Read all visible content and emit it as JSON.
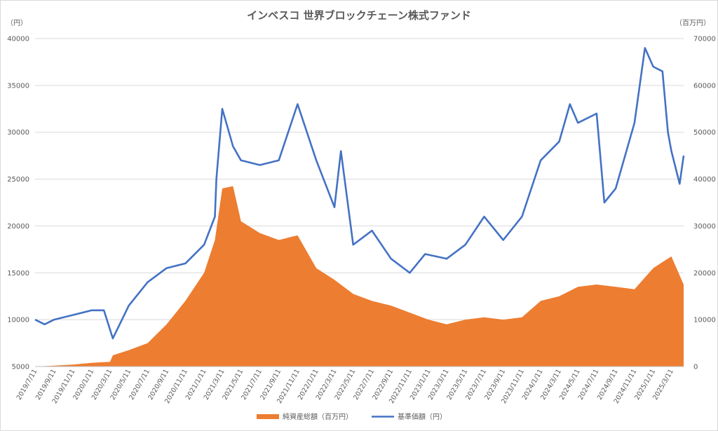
{
  "chart_data": {
    "type": "area+line",
    "title": "インベスコ 世界ブロックチェーン株式ファンド",
    "y_left_unit": "（円）",
    "y_right_unit": "（百万円）",
    "y_left_ticks": [
      "5000",
      "10000",
      "15000",
      "20000",
      "25000",
      "30000",
      "35000",
      "40000"
    ],
    "y_right_ticks": [
      "0",
      "10000",
      "20000",
      "30000",
      "40000",
      "50000",
      "60000",
      "70000"
    ],
    "ylim_left": [
      5000,
      40000
    ],
    "ylim_right": [
      0,
      70000
    ],
    "x_tick_labels": [
      "2019/7/11",
      "2019/9/11",
      "2019/11/11",
      "2020/1/11",
      "2020/3/11",
      "2020/5/11",
      "2020/7/11",
      "2020/9/11",
      "2020/11/11",
      "2021/1/11",
      "2021/3/11",
      "2021/5/11",
      "2021/7/11",
      "2021/9/11",
      "2021/11/11",
      "2022/1/11",
      "2022/3/11",
      "2022/5/11",
      "2022/7/11",
      "2022/9/11",
      "2022/11/11",
      "2023/1/11",
      "2023/3/11",
      "2023/5/11",
      "2023/7/11",
      "2023/9/11",
      "2023/11/11",
      "2024/1/11",
      "2024/3/11",
      "2024/5/11",
      "2024/7/11",
      "2024/9/11",
      "2024/11/11",
      "2025/1/11",
      "2025/3/11"
    ],
    "grid": true,
    "legend_position": "bottom",
    "colors": {
      "nav": "#4472C4",
      "aum": "#ED7D31"
    },
    "series": [
      {
        "name": "純資産総額（百万円）",
        "kind": "area",
        "axis": "right",
        "x": [
          "2019/7/11",
          "2019/9/11",
          "2019/11/11",
          "2020/1/11",
          "2020/3/11",
          "2020/3/20",
          "2020/5/11",
          "2020/7/11",
          "2020/9/11",
          "2020/11/11",
          "2021/1/11",
          "2021/2/15",
          "2021/3/11",
          "2021/4/15",
          "2021/5/11",
          "2021/7/11",
          "2021/9/11",
          "2021/11/11",
          "2022/1/11",
          "2022/3/11",
          "2022/5/11",
          "2022/7/11",
          "2022/9/11",
          "2022/11/11",
          "2023/1/11",
          "2023/3/11",
          "2023/5/11",
          "2023/7/11",
          "2023/9/11",
          "2023/11/11",
          "2024/1/11",
          "2024/3/11",
          "2024/5/11",
          "2024/7/11",
          "2024/9/11",
          "2024/11/11",
          "2025/1/11",
          "2025/2/15",
          "2025/3/11",
          "2025/4/20"
        ],
        "values": [
          0,
          200,
          400,
          800,
          1000,
          2400,
          3500,
          5000,
          9000,
          14000,
          20000,
          27000,
          38000,
          38500,
          31000,
          28500,
          27000,
          28000,
          21000,
          18500,
          15500,
          14000,
          13000,
          11500,
          10000,
          9000,
          10000,
          10500,
          10000,
          10500,
          14000,
          15000,
          17000,
          17500,
          17000,
          16500,
          21000,
          22500,
          23500,
          17500
        ]
      },
      {
        "name": "基準価額（円）",
        "kind": "line",
        "axis": "left",
        "x": [
          "2019/7/11",
          "2019/8/11",
          "2019/9/11",
          "2019/11/11",
          "2020/1/11",
          "2020/2/20",
          "2020/3/20",
          "2020/5/11",
          "2020/7/11",
          "2020/9/11",
          "2020/11/11",
          "2021/1/11",
          "2021/2/15",
          "2021/2/20",
          "2021/3/11",
          "2021/4/15",
          "2021/5/11",
          "2021/7/11",
          "2021/9/11",
          "2021/11/11",
          "2022/1/11",
          "2022/3/11",
          "2022/4/1",
          "2022/5/11",
          "2022/7/11",
          "2022/9/11",
          "2022/11/11",
          "2022/12/31",
          "2023/3/11",
          "2023/5/11",
          "2023/7/11",
          "2023/9/11",
          "2023/11/11",
          "2024/1/11",
          "2024/3/11",
          "2024/4/15",
          "2024/5/11",
          "2024/7/11",
          "2024/8/5",
          "2024/9/11",
          "2024/11/11",
          "2024/12/15",
          "2025/1/11",
          "2025/2/10",
          "2025/2/28",
          "2025/3/11",
          "2025/4/7",
          "2025/4/20"
        ],
        "values": [
          10000,
          9500,
          10000,
          10500,
          11000,
          11000,
          8000,
          11500,
          14000,
          15500,
          16000,
          18000,
          21000,
          25000,
          32500,
          28500,
          27000,
          26500,
          27000,
          33000,
          27000,
          22000,
          28000,
          18000,
          19500,
          16500,
          15000,
          17000,
          16500,
          18000,
          21000,
          18500,
          21000,
          27000,
          29000,
          33000,
          31000,
          32000,
          22500,
          24000,
          31000,
          39000,
          37000,
          36500,
          30000,
          28000,
          24500,
          27500
        ]
      }
    ]
  }
}
